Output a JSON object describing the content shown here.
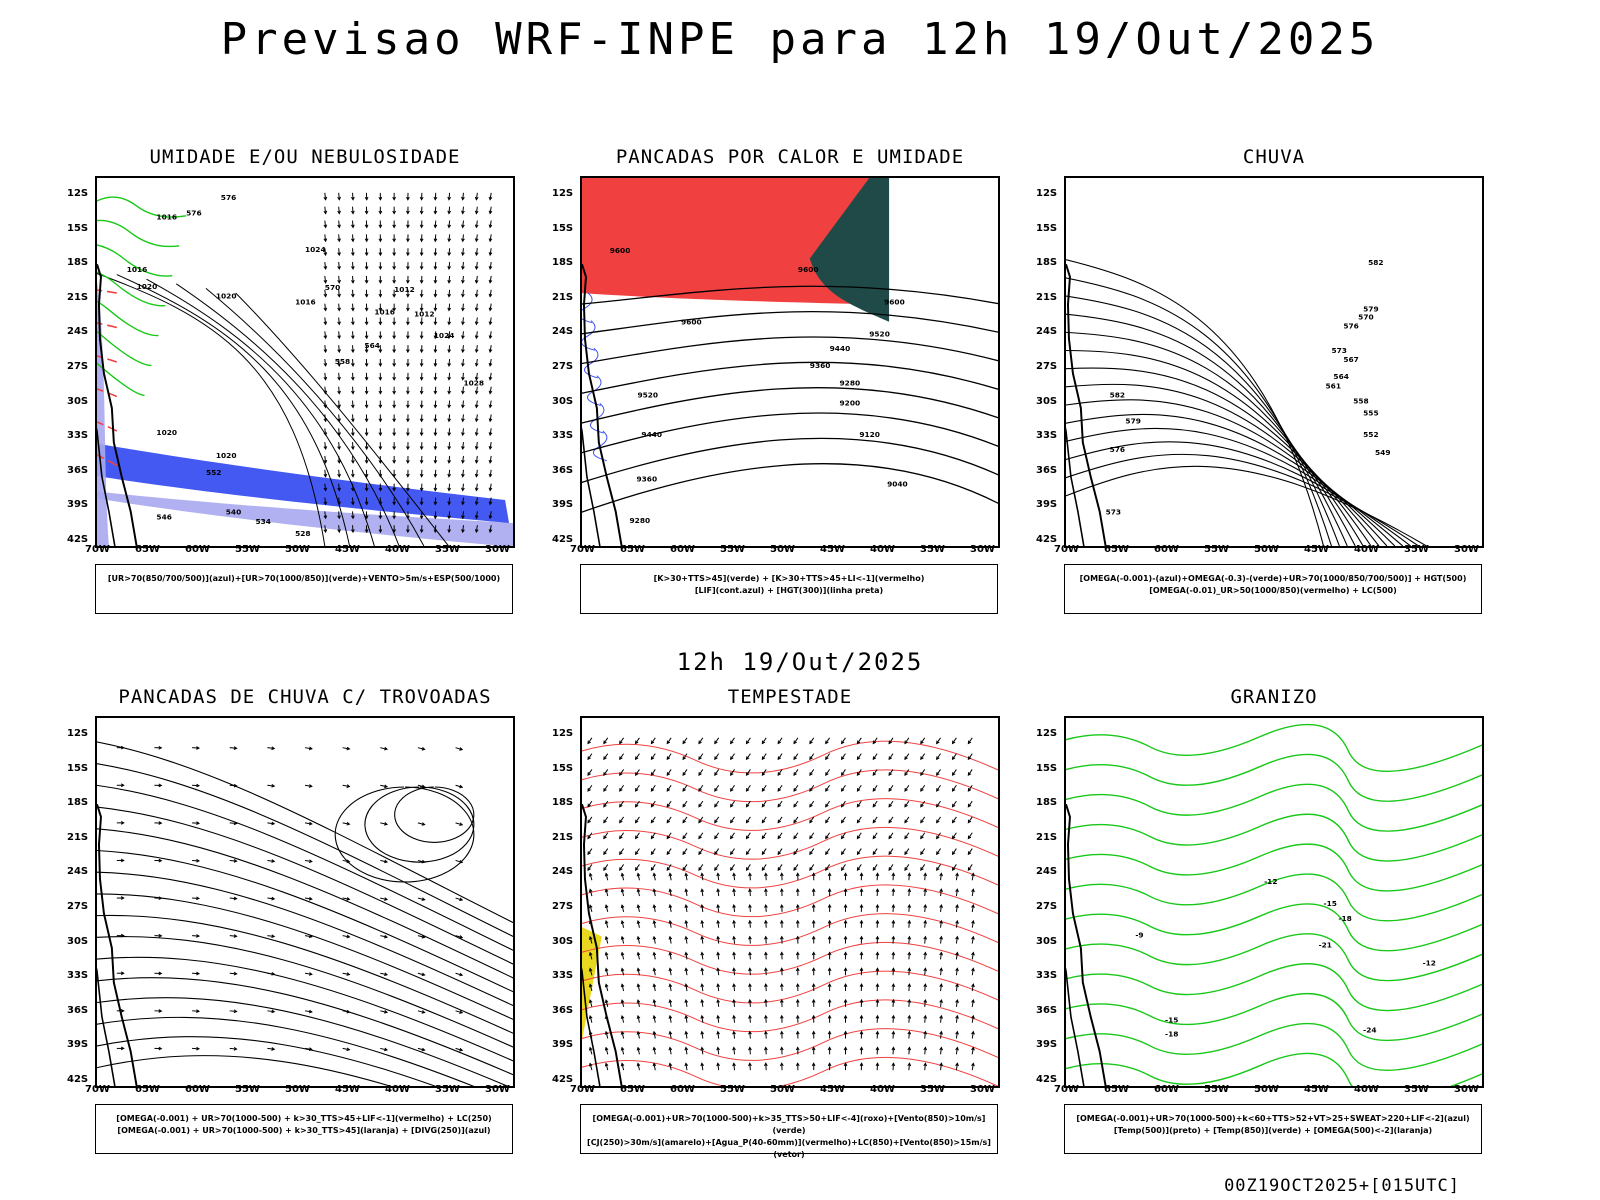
{
  "title": "Previsao WRF-INPE  para 12h 19/Out/2025",
  "mid_time": "12h 19/Out/2025",
  "footer": "00Z19OCT2025+[015UTC]",
  "lat_labels": [
    "12S",
    "15S",
    "18S",
    "21S",
    "24S",
    "27S",
    "30S",
    "33S",
    "36S",
    "39S",
    "42S"
  ],
  "lon_labels": [
    "70W",
    "65W",
    "60W",
    "55W",
    "50W",
    "45W",
    "40W",
    "35W",
    "30W"
  ],
  "colors": {
    "blue": "#3a50f0",
    "lightblue": "#a8a8f0",
    "green": "#18c818",
    "red": "#f04040",
    "darkteal": "#1f4a48",
    "yellow": "#e8d820",
    "orange": "#f08020"
  },
  "panels": [
    {
      "title": "UMIDADE E/OU NEBULOSIDADE",
      "legend": [
        "[UR>70(850/700/500)](azul)+[UR>70(1000/850)](verde)+VENTO>5m/s+ESP(500/1000)"
      ],
      "labels": [
        "1016",
        "1016",
        "1020",
        "1020",
        "1016",
        "1016",
        "1012",
        "1012",
        "1024",
        "1028",
        "1020",
        "1020",
        "576",
        "576",
        "570",
        "564",
        "558",
        "552",
        "546",
        "540",
        "534",
        "528",
        "1024"
      ]
    },
    {
      "title": "PANCADAS POR CALOR E UMIDADE",
      "legend": [
        "[K>30+TTS>45](verde) + [K>30+TTS>45+LI<-1](vermelho)",
        "[LIF](cont.azul) + [HGT(300)](linha preta)"
      ],
      "labels": [
        "9600",
        "9600",
        "9600",
        "9600",
        "9520",
        "9520",
        "9440",
        "9440",
        "9360",
        "9360",
        "9280",
        "9280",
        "9200",
        "9120",
        "9040"
      ]
    },
    {
      "title": "CHUVA",
      "legend": [
        "[OMEGA(-0.001)-(azul)+OMEGA(-0.3)-(verde)+UR>70(1000/850/700/500)] + HGT(500)",
        "[OMEGA(-0.01)_UR>50(1000/850)(vermelho) + LC(500)"
      ],
      "labels": [
        "582",
        "582",
        "579",
        "579",
        "576",
        "576",
        "573",
        "573",
        "570",
        "567",
        "564",
        "561",
        "558",
        "555",
        "552",
        "549"
      ]
    },
    {
      "title": "PANCADAS DE CHUVA C/ TROVOADAS",
      "legend": [
        "[OMEGA(-0.001) + UR>70(1000-500) + k>30_TTS>45+LIF<-1](vermelho) + LC(250)",
        "[OMEGA(-0.001) + UR>70(1000-500) + k>30_TTS>45](laranja) + [DIVG(250)](azul)"
      ],
      "labels": []
    },
    {
      "title": "TEMPESTADE",
      "legend": [
        "[OMEGA(-0.001)+UR>70(1000-500)+k>35_TTS>50+LIF<-4](roxo)+[Vento(850)>10m/s](verde)",
        "[CJ(250)>30m/s](amarelo)+[Agua_P(40-60mm)](vermelho)+LC(850)+[Vento(850)>15m/s](vetor)"
      ],
      "labels": []
    },
    {
      "title": "GRANIZO",
      "legend": [
        "[OMEGA(-0.001)+UR>70(1000-500)+k<60+TTS>52+VT>25+SWEAT>220+LIF<-2](azul)",
        "[Temp(500)](preto) + [Temp(850)](verde) + [OMEGA(500)<-2](laranja)"
      ],
      "labels": [
        "-12",
        "-15",
        "-18",
        "-21",
        "-24",
        "-9",
        "-12",
        "-15",
        "-18"
      ]
    }
  ]
}
